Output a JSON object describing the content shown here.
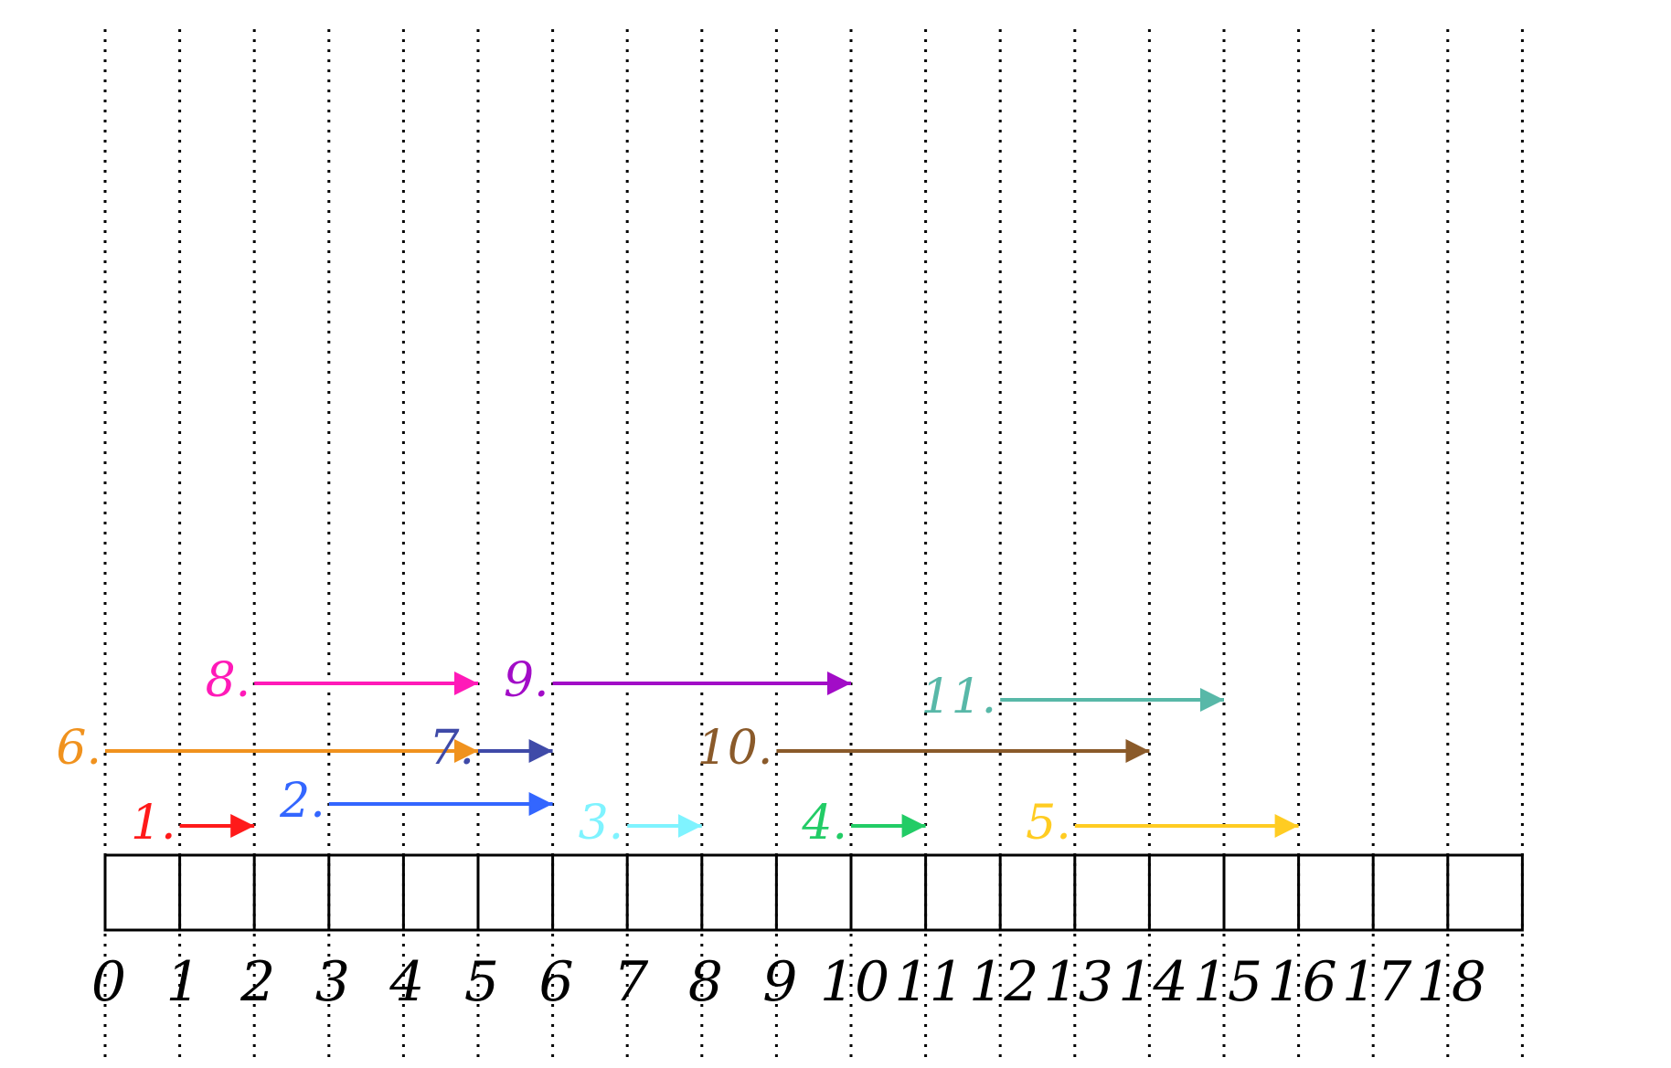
{
  "axis": {
    "ticks": [
      "0",
      "1",
      "2",
      "3",
      "4",
      "5",
      "6",
      "7",
      "8",
      "9",
      "10",
      "11",
      "12",
      "13",
      "14",
      "15",
      "16",
      "17",
      "18"
    ],
    "min": 0,
    "max": 19,
    "line_color": "#000000"
  },
  "chart_data": {
    "type": "interval-timeline",
    "intervals": [
      {
        "label": "1.",
        "start": 1,
        "end": 2,
        "color": "#ff1a1a",
        "row": 1
      },
      {
        "label": "2.",
        "start": 3,
        "end": 6,
        "color": "#3366ff",
        "row": 2
      },
      {
        "label": "3.",
        "start": 7,
        "end": 8,
        "color": "#7ff3ff",
        "row": 1
      },
      {
        "label": "4.",
        "start": 10,
        "end": 11,
        "color": "#22cc66",
        "row": 1
      },
      {
        "label": "5.",
        "start": 13,
        "end": 16,
        "color": "#ffcc22",
        "row": 1
      },
      {
        "label": "6.",
        "start": 0,
        "end": 5,
        "color": "#f0921e",
        "row": 3
      },
      {
        "label": "7.",
        "start": 5,
        "end": 6,
        "color": "#3f4aa8",
        "row": 3
      },
      {
        "label": "8.",
        "start": 2,
        "end": 5,
        "color": "#ff1ab8",
        "row": 5
      },
      {
        "label": "9.",
        "start": 6,
        "end": 10,
        "color": "#a20cc7",
        "row": 5
      },
      {
        "label": "10.",
        "start": 9,
        "end": 14,
        "color": "#8a5a2a",
        "row": 3
      },
      {
        "label": "11.",
        "start": 12,
        "end": 15,
        "color": "#58b8a8",
        "row": 4
      }
    ]
  }
}
